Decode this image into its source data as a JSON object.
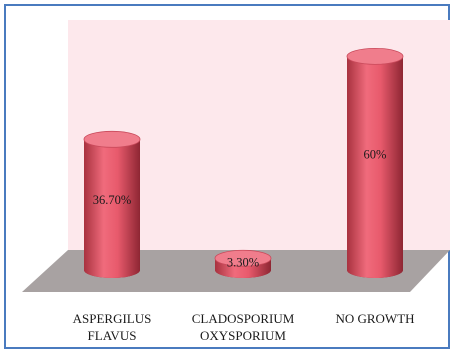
{
  "chart_data": {
    "type": "bar",
    "style": "3d-cylinder",
    "categories": [
      [
        "ASPERGILUS",
        "FLAVUS"
      ],
      [
        "CLADOSPORIUM",
        "OXYSPORIUM"
      ],
      [
        "NO GROWTH"
      ]
    ],
    "values": [
      36.7,
      3.3,
      60
    ],
    "data_labels": [
      "36.70%",
      "3.30%",
      "60%"
    ],
    "ylim": [
      0,
      66
    ],
    "grid": false,
    "legend": "none",
    "colors": {
      "bar": "#e85a6c",
      "bar_dark": "#9c2f3d",
      "bar_top": "#f07d8c",
      "floor": "#a8a2a2",
      "back_wall": "#fde8ec",
      "border": "#4a7bbf"
    }
  }
}
